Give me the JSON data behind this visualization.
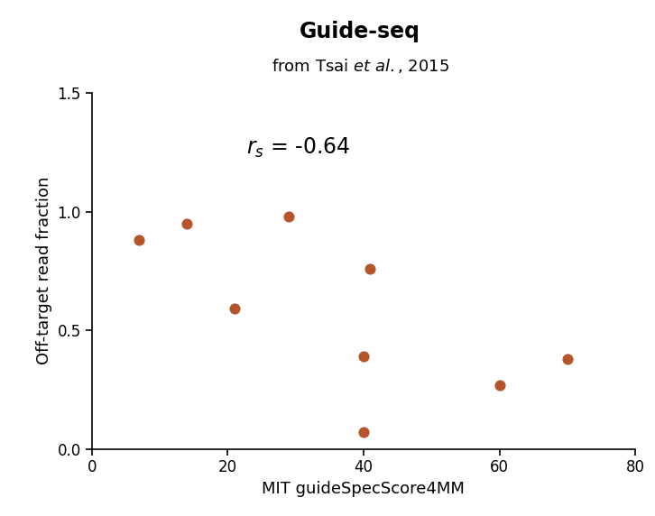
{
  "title_line1": "Guide-seq",
  "title_line2_pre": "from Tsai ",
  "title_line2_post": ", 2015",
  "xlabel": "MIT guideSpecScore4MM",
  "ylabel": "Off-target read fraction",
  "x_data": [
    7,
    14,
    21,
    29,
    40,
    40,
    41,
    60,
    70
  ],
  "y_data": [
    0.88,
    0.95,
    0.59,
    0.98,
    0.07,
    0.39,
    0.76,
    0.27,
    0.38
  ],
  "dot_color": "#b5552a",
  "dot_size": 60,
  "xlim": [
    0,
    80
  ],
  "ylim": [
    0,
    1.5
  ],
  "xticks": [
    0,
    20,
    40,
    60,
    80
  ],
  "yticks": [
    0.0,
    0.5,
    1.0,
    1.5
  ],
  "background_color": "#ffffff",
  "title_fontsize": 17,
  "subtitle_fontsize": 13,
  "axis_label_fontsize": 13,
  "tick_fontsize": 12,
  "annotation_fontsize": 17
}
